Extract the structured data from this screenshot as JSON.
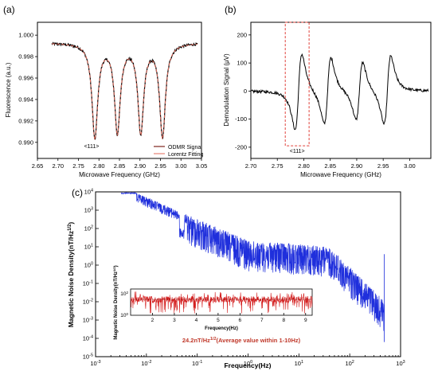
{
  "chart_data": [
    {
      "panel": "(a)",
      "type": "line",
      "xlabel": "Microwave Frequency (GHz)",
      "ylabel": "Fluorescence (a.u.)",
      "xlim": [
        2.65,
        3.05
      ],
      "ylim": [
        0.9885,
        1.0012
      ],
      "xticks": [
        "2.65",
        "2.70",
        "2.75",
        "2.80",
        "2.85",
        "2.90",
        "2.95",
        "3.00",
        "3.05"
      ],
      "yticks": [
        "0.990",
        "0.992",
        "0.994",
        "0.996",
        "0.998",
        "1.000"
      ],
      "annotation": "<111>",
      "legend_position": "bottom-right",
      "dips": [
        {
          "center": 2.79,
          "depth": 0.0088,
          "width": 0.0085
        },
        {
          "center": 2.845,
          "depth": 0.0082,
          "width": 0.0085
        },
        {
          "center": 2.902,
          "depth": 0.0082,
          "width": 0.0085
        },
        {
          "center": 2.955,
          "depth": 0.0087,
          "width": 0.0085
        }
      ],
      "series": [
        {
          "name": "ODMR Signal",
          "color": "#000000"
        },
        {
          "name": "Lorentz Fitting",
          "color": "#e06a5a"
        }
      ]
    },
    {
      "panel": "(b)",
      "type": "line",
      "xlabel": "Microwave Frequency (GHz)",
      "ylabel": "Demodulation Signal (μV)",
      "xlim": [
        2.7,
        3.04
      ],
      "ylim": [
        -240,
        245
      ],
      "xticks": [
        "2.70",
        "2.75",
        "2.80",
        "2.85",
        "2.90",
        "2.95",
        "3.00"
      ],
      "yticks": [
        "-200",
        "-100",
        "0",
        "100",
        "200"
      ],
      "annotation": "<111>",
      "highlight_box": {
        "x": [
          2.765,
          2.81
        ],
        "y": [
          -195,
          245
        ]
      },
      "features": [
        {
          "center": 2.79,
          "amplitude": 210
        },
        {
          "center": 2.845,
          "amplitude": 185
        },
        {
          "center": 2.905,
          "amplitude": 160
        },
        {
          "center": 2.958,
          "amplitude": 190
        }
      ],
      "series": [
        {
          "name": "",
          "color": "#000000"
        }
      ]
    },
    {
      "panel": "(c)",
      "type": "line",
      "xlabel": "Frequency(Hz)",
      "ylabel": "Magnetic Noise Density(nT/Hz",
      "ylabel_sup": "1/2",
      "ylabel_end": ")",
      "x_scale": "log",
      "y_scale": "log",
      "xlim_exp": [
        -3,
        3
      ],
      "ylim_exp": [
        -5,
        4
      ],
      "xtick_exps": [
        -3,
        -2,
        -1,
        0,
        1,
        2,
        3
      ],
      "ytick_exps": [
        -5,
        -4,
        -3,
        -2,
        -1,
        0,
        1,
        2,
        3,
        4
      ],
      "series": [
        {
          "name": "",
          "color": "#1f2fdc"
        }
      ],
      "inset": {
        "type": "line",
        "xlabel": "Frequency(Hz)",
        "ylabel": "Magnetic Noise Density(nT/Hz",
        "ylabel_sup": "1/2",
        "ylabel_end": ")",
        "xlim": [
          1,
          9.3
        ],
        "xticks": [
          "2",
          "3",
          "4",
          "5",
          "6",
          "7",
          "8",
          "9"
        ],
        "yticks": [
          "10",
          "10"
        ],
        "ytick_sups": [
          "2",
          "0"
        ],
        "average_value": 24.2,
        "color": "#d42020"
      },
      "note_value": "24.2nT/Hz",
      "note_sup": "1/2",
      "note_rest": "(Average value within 1-10Hz)"
    }
  ]
}
